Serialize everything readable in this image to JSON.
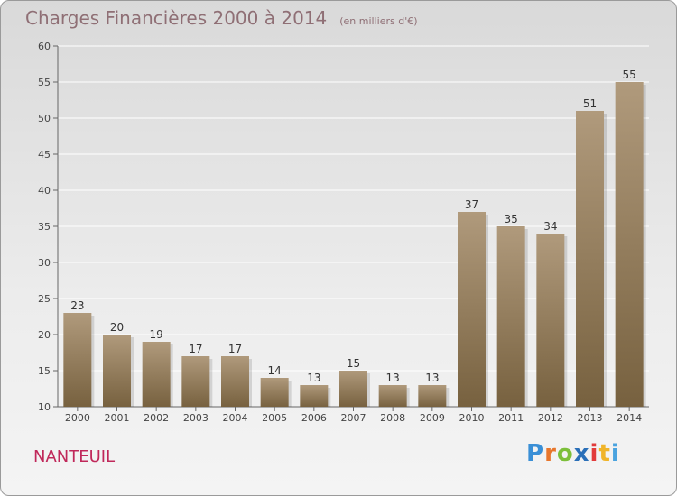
{
  "header": {
    "title": "Charges Financières 2000 à 2014",
    "subtitle": "(en milliers d'€)"
  },
  "footer": {
    "city": "NANTEUIL",
    "brand": "Proxiti",
    "brand_colors": [
      "#3a8fd6",
      "#e8762b",
      "#7cbf3a",
      "#2a6fb8",
      "#e23b3b",
      "#f0b429",
      "#4aa3df"
    ]
  },
  "colors": {
    "bar_top": "#b09a7c",
    "bar_bottom": "#77613f",
    "title": "#8f6f75",
    "city": "#c0285a"
  },
  "chart_data": {
    "type": "bar",
    "title": "Charges Financières 2000 à 2014",
    "subtitle": "(en milliers d'€)",
    "xlabel": "",
    "ylabel": "",
    "categories": [
      "2000",
      "2001",
      "2002",
      "2003",
      "2004",
      "2005",
      "2006",
      "2007",
      "2008",
      "2009",
      "2010",
      "2011",
      "2012",
      "2013",
      "2014"
    ],
    "values": [
      23,
      20,
      19,
      17,
      17,
      14,
      13,
      15,
      13,
      13,
      37,
      35,
      34,
      51,
      55
    ],
    "ylim": [
      10,
      60
    ],
    "yticks": [
      10,
      15,
      20,
      25,
      30,
      35,
      40,
      45,
      50,
      55,
      60
    ],
    "grid": true
  }
}
